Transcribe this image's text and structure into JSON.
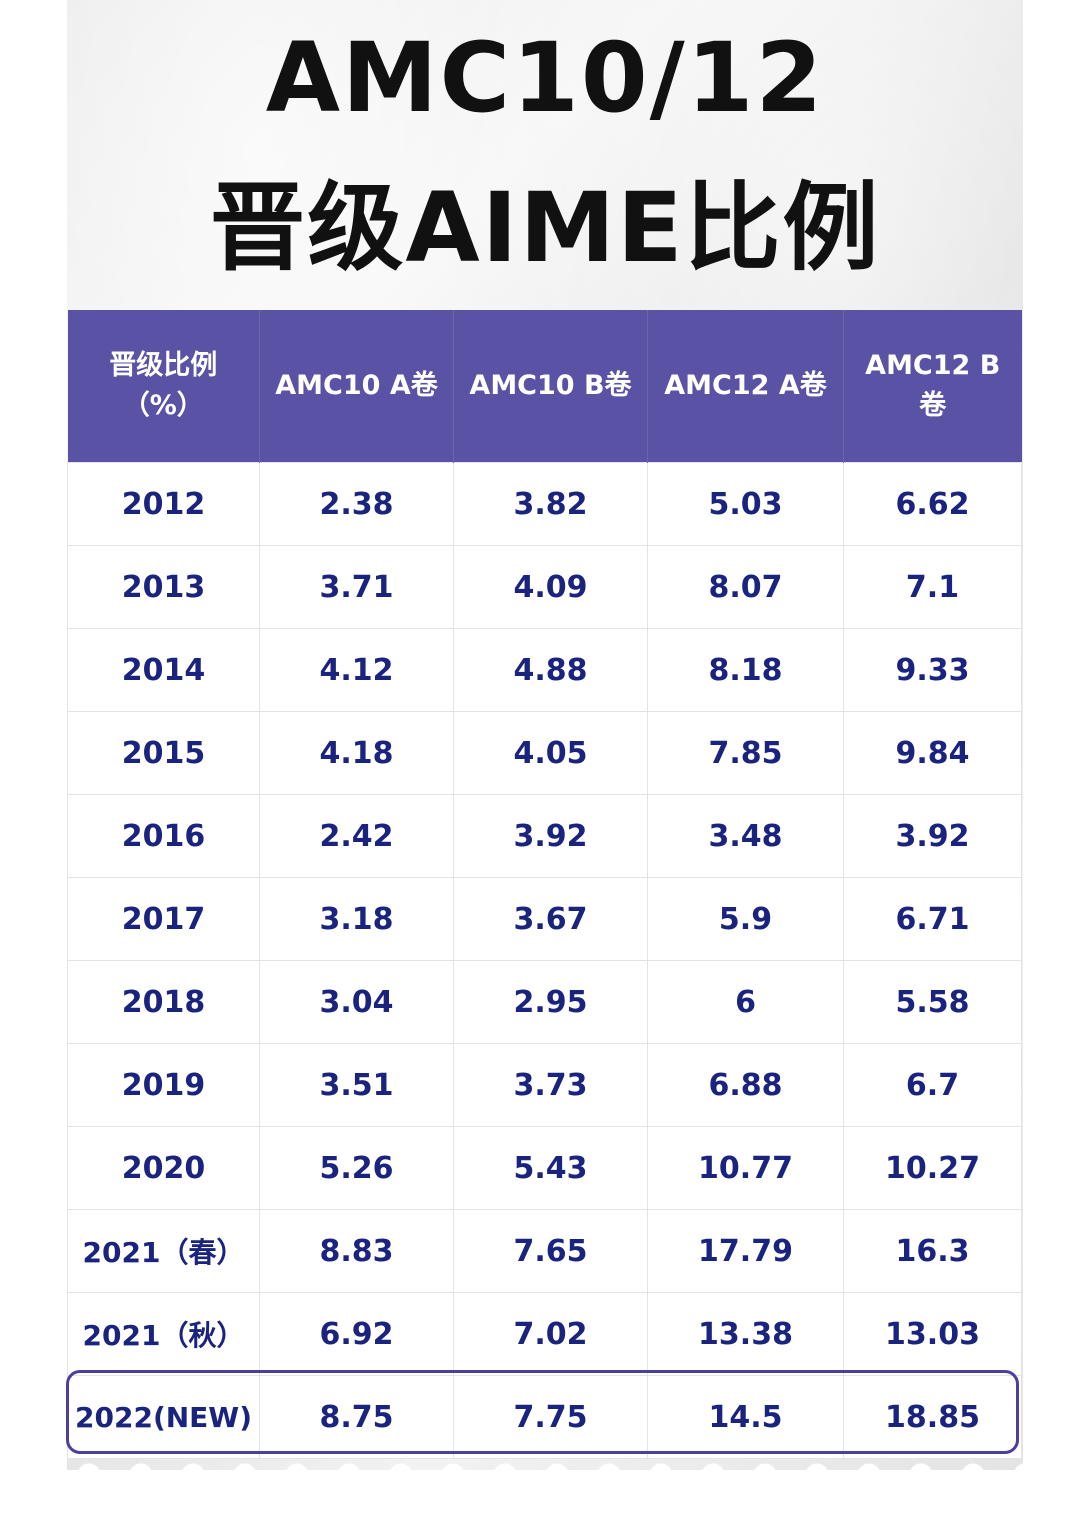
{
  "title": {
    "line1": "AMC10/12",
    "line2": "晋级AIME比例"
  },
  "table": {
    "headers": [
      {
        "line1": "晋级比例",
        "line2": "（%）"
      },
      {
        "line1": "AMC10 A卷",
        "line2": ""
      },
      {
        "line1": "AMC10 B卷",
        "line2": ""
      },
      {
        "line1": "AMC12 A卷",
        "line2": ""
      },
      {
        "line1": "AMC12 B",
        "line2": "卷"
      }
    ],
    "rows": [
      [
        "2012",
        "2.38",
        "3.82",
        "5.03",
        "6.62"
      ],
      [
        "2013",
        "3.71",
        "4.09",
        "8.07",
        "7.1"
      ],
      [
        "2014",
        "4.12",
        "4.88",
        "8.18",
        "9.33"
      ],
      [
        "2015",
        "4.18",
        "4.05",
        "7.85",
        "9.84"
      ],
      [
        "2016",
        "2.42",
        "3.92",
        "3.48",
        "3.92"
      ],
      [
        "2017",
        "3.18",
        "3.67",
        "5.9",
        "6.71"
      ],
      [
        "2018",
        "3.04",
        "2.95",
        "6",
        "5.58"
      ],
      [
        "2019",
        "3.51",
        "3.73",
        "6.88",
        "6.7"
      ],
      [
        "2020",
        "5.26",
        "5.43",
        "10.77",
        "10.27"
      ],
      [
        "2021（春）",
        "8.83",
        "7.65",
        "17.79",
        "16.3"
      ],
      [
        "2021（秋）",
        "6.92",
        "7.02",
        "13.38",
        "13.03"
      ],
      [
        "2022(NEW)",
        "8.75",
        "7.75",
        "14.5",
        "18.85"
      ]
    ]
  },
  "colors": {
    "header_bg": "#5a52a4",
    "cell_text": "#1a237e",
    "highlight_border": "#4b3fa0"
  }
}
